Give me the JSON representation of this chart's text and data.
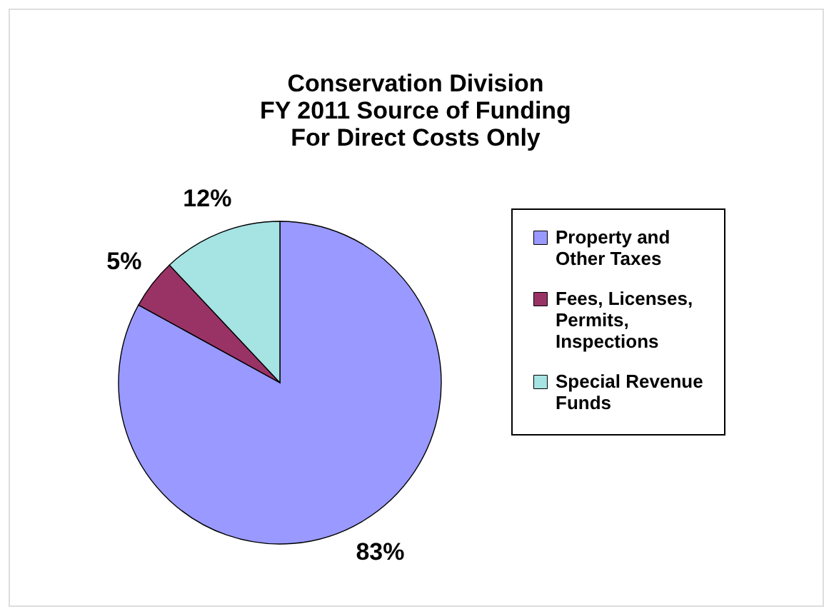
{
  "chart_data": {
    "type": "pie",
    "title": "Conservation Division\nFY 2011 Source of Funding\nFor Direct Costs Only",
    "categories": [
      "Property and Other Taxes",
      "Fees, Licenses, Permits, Inspections",
      "Special Revenue Funds"
    ],
    "values": [
      83,
      5,
      12
    ],
    "colors": [
      "#9999ff",
      "#993366",
      "#a6e3e3"
    ],
    "value_labels": [
      "83%",
      "5%",
      "12%"
    ],
    "legend": "right"
  }
}
